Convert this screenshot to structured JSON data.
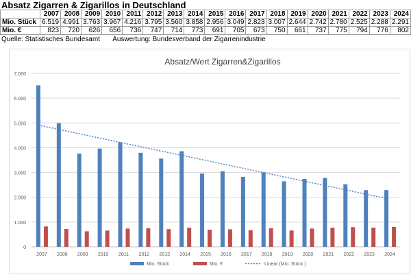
{
  "header": {
    "title": "Absatz Zigarren & Zigarillos in Deutschland",
    "source_label": "Quelle: Statistisches Bundesamt",
    "analysis_label": "Auswertung: Bundesverband der Zigarrenindustrie"
  },
  "table": {
    "columns": [
      "2007",
      "2008",
      "2009",
      "2010",
      "2011",
      "2012",
      "2013",
      "2014",
      "2015",
      "2016",
      "2017",
      "2018",
      "2019",
      "2020",
      "2021",
      "2022",
      "2023",
      "2024"
    ],
    "rows": [
      {
        "label": "Mio. Stück",
        "values": [
          "6.519",
          "4.991",
          "3.763",
          "3.967",
          "4.216",
          "3.795",
          "3.560",
          "3.858",
          "2.956",
          "3.049",
          "2.823",
          "3.007",
          "2.644",
          "2.742",
          "2.780",
          "2.525",
          "2.288",
          "2.291"
        ]
      },
      {
        "label": "Mio. €",
        "values": [
          "823",
          "720",
          "626",
          "656",
          "736",
          "747",
          "714",
          "773",
          "691",
          "705",
          "673",
          "750",
          "661",
          "737",
          "775",
          "794",
          "776",
          "802"
        ]
      }
    ]
  },
  "chart_data": {
    "type": "bar",
    "title": "Absatz/Wert Zigarren&Zigarillos",
    "categories": [
      "2007",
      "2008",
      "2009",
      "2010",
      "2011",
      "2012",
      "2013",
      "2014",
      "2015",
      "2016",
      "2017",
      "2018",
      "2019",
      "2020",
      "2021",
      "2022",
      "2023",
      "2024"
    ],
    "series": [
      {
        "name": "Mio. Stück",
        "color": "#4f81bd",
        "values": [
          6519,
          4991,
          3763,
          3967,
          4216,
          3795,
          3560,
          3858,
          2956,
          3049,
          2823,
          3007,
          2644,
          2742,
          2780,
          2525,
          2288,
          2291
        ]
      },
      {
        "name": "Mio. €",
        "color": "#c0504d",
        "values": [
          823,
          720,
          626,
          656,
          736,
          747,
          714,
          773,
          691,
          705,
          673,
          750,
          661,
          737,
          775,
          794,
          776,
          802
        ]
      }
    ],
    "trendline": {
      "name": "Linear (Mio. Stück  )",
      "type": "linear",
      "of_series": "Mio. Stück",
      "color": "#4f81bd",
      "style": "dotted"
    },
    "ylim": [
      0,
      7000
    ],
    "yticks": [
      "0",
      "1.000",
      "2.000",
      "3.000",
      "4.000",
      "5.000",
      "6.000",
      "7.000"
    ],
    "grid": true,
    "legend_position": "bottom"
  }
}
